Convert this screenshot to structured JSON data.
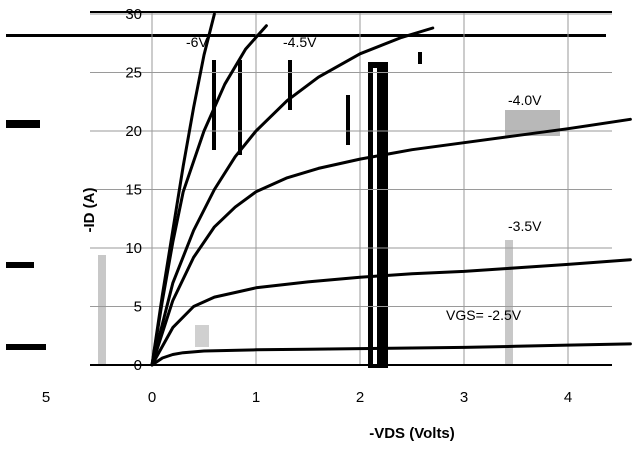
{
  "chart_data": {
    "type": "line",
    "xlabel": "-VDS (Volts)",
    "ylabel": "-ID (A)",
    "xlim": [
      0,
      4.6
    ],
    "ylim": [
      0,
      30
    ],
    "x_ticks": [
      0,
      1,
      2,
      3,
      4
    ],
    "y_ticks": [
      0,
      5,
      10,
      15,
      20,
      25,
      30
    ],
    "y_tick_labels": [
      "0",
      "5",
      "10",
      "15",
      "20",
      "25",
      "30"
    ],
    "left_margin_labels": [
      "5",
      "0"
    ],
    "grid": true,
    "legend": "inline labels at curve ends",
    "series": [
      {
        "name": "-6V",
        "x": [
          0,
          0.1,
          0.2,
          0.3,
          0.4,
          0.5,
          0.6
        ],
        "y": [
          0,
          6.0,
          11.5,
          17.0,
          22.0,
          26.5,
          30.0
        ]
      },
      {
        "name": "-4.5V",
        "x": [
          0,
          0.1,
          0.2,
          0.3,
          0.5,
          0.7,
          0.9,
          1.1
        ],
        "y": [
          0,
          5.5,
          10.5,
          14.8,
          20.0,
          24.0,
          27.0,
          29.0
        ]
      },
      {
        "name": "",
        "x": [
          0,
          0.2,
          0.4,
          0.6,
          0.8,
          1.0,
          1.3,
          1.6,
          2.0,
          2.4,
          2.7
        ],
        "y": [
          0,
          7.0,
          11.5,
          15.0,
          17.8,
          20.0,
          22.6,
          24.6,
          26.6,
          28.0,
          28.8
        ]
      },
      {
        "name": "-4.0V",
        "x": [
          0,
          0.2,
          0.4,
          0.6,
          0.8,
          1.0,
          1.3,
          1.6,
          2.0,
          2.5,
          3.0,
          3.5,
          4.0,
          4.6
        ],
        "y": [
          0,
          5.5,
          9.2,
          11.8,
          13.5,
          14.8,
          16.0,
          16.8,
          17.6,
          18.4,
          19.0,
          19.6,
          20.2,
          21.0
        ]
      },
      {
        "name": "-3.5V",
        "x": [
          0,
          0.2,
          0.4,
          0.6,
          0.8,
          1.0,
          1.5,
          2.0,
          2.5,
          3.0,
          3.5,
          4.0,
          4.6
        ],
        "y": [
          0,
          3.2,
          5.0,
          5.8,
          6.2,
          6.6,
          7.1,
          7.5,
          7.8,
          8.0,
          8.3,
          8.6,
          9.0
        ]
      },
      {
        "name": "VGS= -2.5V",
        "x": [
          0,
          0.1,
          0.2,
          0.3,
          0.5,
          1.0,
          1.5,
          2.0,
          2.5,
          3.0,
          3.5,
          4.0,
          4.6
        ],
        "y": [
          0,
          0.6,
          0.9,
          1.05,
          1.2,
          1.3,
          1.35,
          1.4,
          1.45,
          1.5,
          1.6,
          1.7,
          1.8
        ]
      }
    ]
  }
}
